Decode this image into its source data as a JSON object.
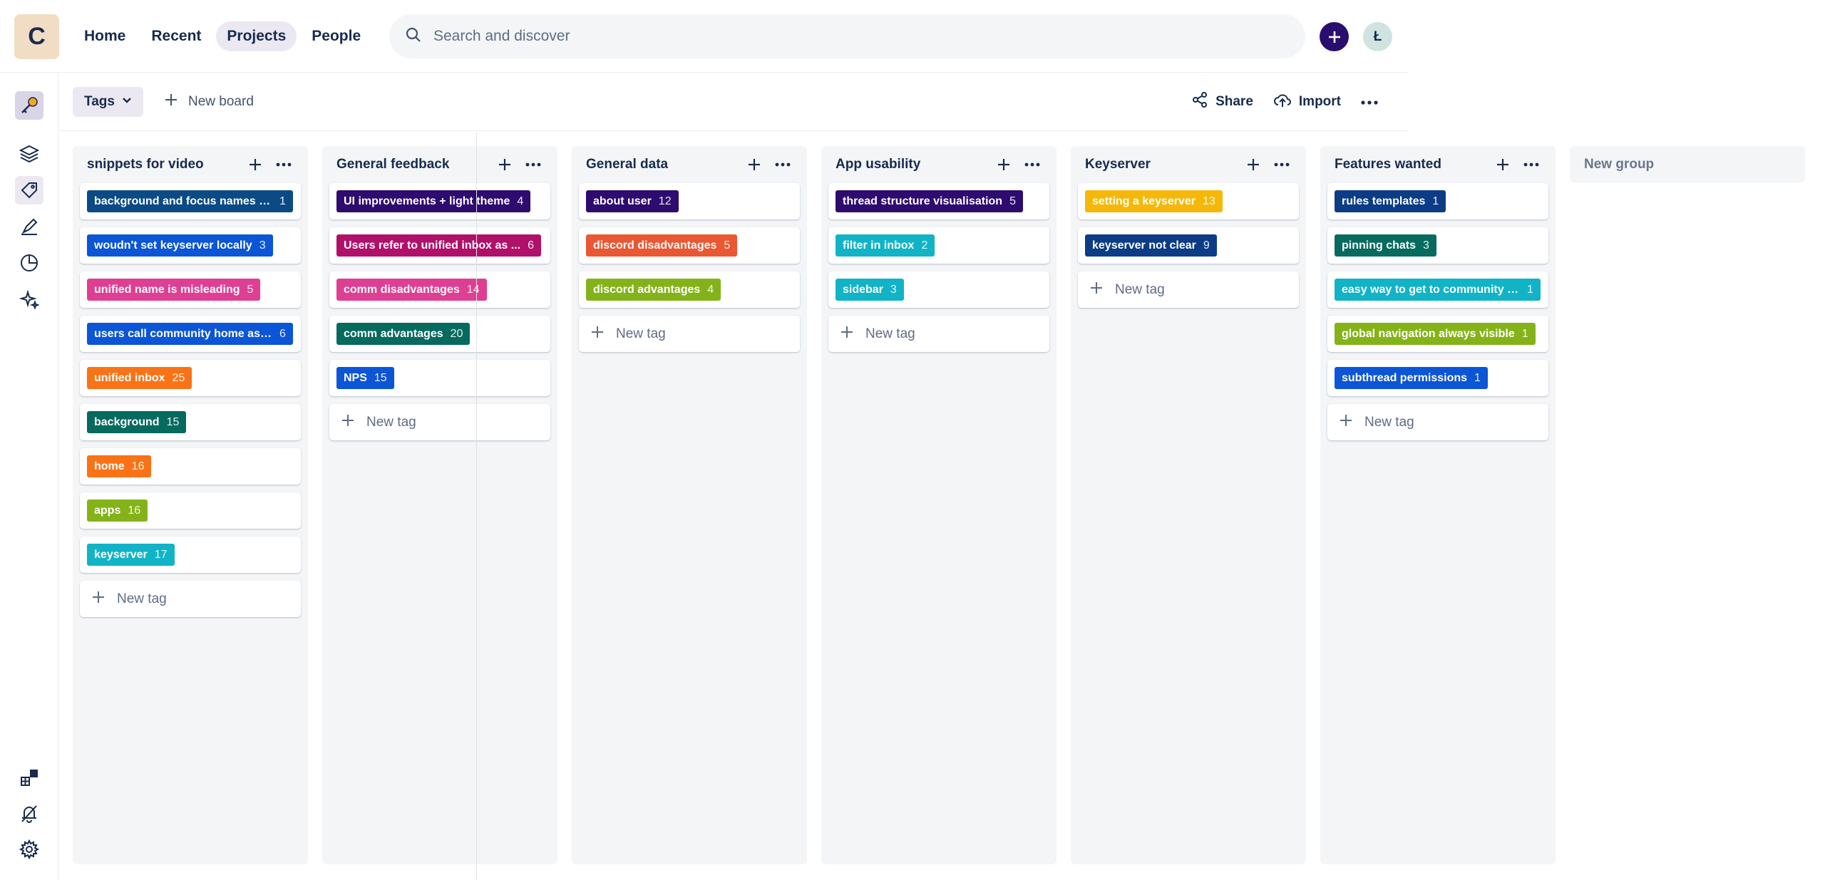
{
  "app": {
    "workspace_initial": "C",
    "user_initial": "Ł"
  },
  "nav": {
    "items": [
      "Home",
      "Recent",
      "Projects",
      "People"
    ],
    "active": "Projects"
  },
  "search": {
    "placeholder": "Search and discover"
  },
  "toolbar": {
    "tags_label": "Tags",
    "new_board_label": "New board",
    "share_label": "Share",
    "import_label": "Import"
  },
  "colors": {
    "accent": "#2a0e6e"
  },
  "board": {
    "new_tag_label": "New tag",
    "new_group_label": "New group",
    "columns": [
      {
        "title": "snippets for video",
        "tags": [
          {
            "label": "background and focus names a...",
            "count": "1",
            "color": "#0c4a85"
          },
          {
            "label": "woudn't set keyserver locally",
            "count": "3",
            "color": "#0b55d6"
          },
          {
            "label": "unified name is misleading",
            "count": "5",
            "color": "#df3f92"
          },
          {
            "label": "users call community home as ...",
            "count": "6",
            "color": "#0b55d6"
          },
          {
            "label": "unified inbox",
            "count": "25",
            "color": "#f97316"
          },
          {
            "label": "background",
            "count": "15",
            "color": "#066a5e"
          },
          {
            "label": "home",
            "count": "16",
            "color": "#f97316"
          },
          {
            "label": "apps",
            "count": "16",
            "color": "#84b319"
          },
          {
            "label": "keyserver",
            "count": "17",
            "color": "#11b3c6"
          }
        ]
      },
      {
        "title": "General feedback",
        "tags": [
          {
            "label": "UI improvements + light theme",
            "count": "4",
            "color": "#2e0b6e"
          },
          {
            "label": "Users refer to unified inbox as ...",
            "count": "6",
            "color": "#b0106a"
          },
          {
            "label": "comm disadvantages",
            "count": "14",
            "color": "#df3f92"
          },
          {
            "label": "comm advantages",
            "count": "20",
            "color": "#066a5e"
          },
          {
            "label": "NPS",
            "count": "15",
            "color": "#0b55d6"
          }
        ]
      },
      {
        "title": "General data",
        "tags": [
          {
            "label": "about user",
            "count": "12",
            "color": "#2e0b6e"
          },
          {
            "label": "discord disadvantages",
            "count": "5",
            "color": "#ea5733"
          },
          {
            "label": "discord advantages",
            "count": "4",
            "color": "#84b319"
          }
        ]
      },
      {
        "title": "App usability",
        "tags": [
          {
            "label": "thread structure visualisation",
            "count": "5",
            "color": "#2e0b6e"
          },
          {
            "label": "filter in inbox",
            "count": "2",
            "color": "#11b3c6"
          },
          {
            "label": "sidebar",
            "count": "3",
            "color": "#11b3c6"
          }
        ]
      },
      {
        "title": "Keyserver",
        "tags": [
          {
            "label": "setting a keyserver",
            "count": "13",
            "color": "#f5b80a"
          },
          {
            "label": "keyserver not clear",
            "count": "9",
            "color": "#0c3c85"
          }
        ]
      },
      {
        "title": "Features wanted",
        "tags": [
          {
            "label": "rules templates",
            "count": "1",
            "color": "#0c3c85"
          },
          {
            "label": "pinning chats",
            "count": "3",
            "color": "#066a5e"
          },
          {
            "label": "easy way to get to community f...",
            "count": "1",
            "color": "#11b3c6"
          },
          {
            "label": "global navigation always visible",
            "count": "1",
            "color": "#84b319"
          },
          {
            "label": "subthread permissions",
            "count": "1",
            "color": "#0b55d6"
          }
        ]
      }
    ]
  }
}
